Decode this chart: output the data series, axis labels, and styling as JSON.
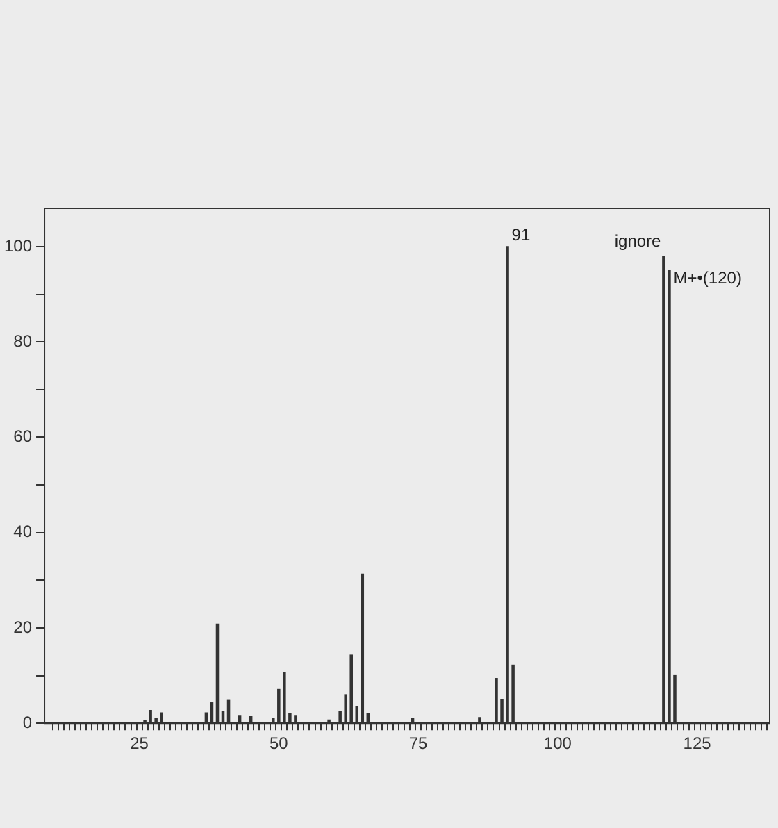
{
  "chart_data": {
    "type": "bar",
    "x": [
      26,
      27,
      28,
      29,
      37,
      38,
      39,
      40,
      41,
      43,
      45,
      49,
      50,
      51,
      52,
      53,
      59,
      61,
      62,
      63,
      64,
      65,
      66,
      74,
      86,
      89,
      90,
      91,
      92,
      119,
      120,
      121
    ],
    "values": [
      0.5,
      2.7,
      1,
      2.2,
      2.2,
      4.3,
      20.8,
      2.5,
      4.8,
      1.5,
      1.4,
      1,
      7.1,
      10.7,
      2,
      1.5,
      0.7,
      2.5,
      6,
      14.3,
      3.5,
      31.3,
      2,
      1,
      1.2,
      9.4,
      5,
      100,
      12.2,
      98,
      95,
      10
    ],
    "color": "#333333",
    "xlim": [
      8,
      138
    ],
    "xticks": [
      {
        "value": 10,
        "label": null
      },
      {
        "value": 11,
        "label": null
      },
      {
        "value": 12,
        "label": null
      },
      {
        "value": 13,
        "label": null
      },
      {
        "value": 14,
        "label": null
      },
      {
        "value": 15,
        "label": null
      },
      {
        "value": 16,
        "label": null
      },
      {
        "value": 17,
        "label": null
      },
      {
        "value": 18,
        "label": null
      },
      {
        "value": 19,
        "label": null
      },
      {
        "value": 20,
        "label": null
      },
      {
        "value": 21,
        "label": null
      },
      {
        "value": 22,
        "label": null
      },
      {
        "value": 23,
        "label": null
      },
      {
        "value": 24,
        "label": null
      },
      25,
      {
        "value": 26,
        "label": null
      },
      {
        "value": 27,
        "label": null
      },
      {
        "value": 28,
        "label": null
      },
      {
        "value": 29,
        "label": null
      },
      {
        "value": 30,
        "label": null
      },
      {
        "value": 31,
        "label": null
      },
      {
        "value": 32,
        "label": null
      },
      {
        "value": 33,
        "label": null
      },
      {
        "value": 34,
        "label": null
      },
      {
        "value": 35,
        "label": null
      },
      {
        "value": 36,
        "label": null
      },
      {
        "value": 37,
        "label": null
      },
      {
        "value": 38,
        "label": null
      },
      {
        "value": 39,
        "label": null
      },
      {
        "value": 40,
        "label": null
      },
      {
        "value": 41,
        "label": null
      },
      {
        "value": 42,
        "label": null
      },
      {
        "value": 43,
        "label": null
      },
      {
        "value": 44,
        "label": null
      },
      {
        "value": 45,
        "label": null
      },
      {
        "value": 46,
        "label": null
      },
      {
        "value": 47,
        "label": null
      },
      {
        "value": 48,
        "label": null
      },
      {
        "value": 49,
        "label": null
      },
      50,
      {
        "value": 51,
        "label": null
      },
      {
        "value": 52,
        "label": null
      },
      {
        "value": 53,
        "label": null
      },
      {
        "value": 54,
        "label": null
      },
      {
        "value": 55,
        "label": null
      },
      {
        "value": 56,
        "label": null
      },
      {
        "value": 57,
        "label": null
      },
      {
        "value": 58,
        "label": null
      },
      {
        "value": 59,
        "label": null
      },
      {
        "value": 60,
        "label": null
      },
      {
        "value": 61,
        "label": null
      },
      {
        "value": 62,
        "label": null
      },
      {
        "value": 63,
        "label": null
      },
      {
        "value": 64,
        "label": null
      },
      {
        "value": 65,
        "label": null
      },
      {
        "value": 66,
        "label": null
      },
      {
        "value": 67,
        "label": null
      },
      {
        "value": 68,
        "label": null
      },
      {
        "value": 69,
        "label": null
      },
      {
        "value": 70,
        "label": null
      },
      {
        "value": 71,
        "label": null
      },
      {
        "value": 72,
        "label": null
      },
      {
        "value": 73,
        "label": null
      },
      {
        "value": 74,
        "label": null
      },
      75,
      {
        "value": 76,
        "label": null
      },
      {
        "value": 77,
        "label": null
      },
      {
        "value": 78,
        "label": null
      },
      {
        "value": 79,
        "label": null
      },
      {
        "value": 80,
        "label": null
      },
      {
        "value": 81,
        "label": null
      },
      {
        "value": 82,
        "label": null
      },
      {
        "value": 83,
        "label": null
      },
      {
        "value": 84,
        "label": null
      },
      {
        "value": 85,
        "label": null
      },
      {
        "value": 86,
        "label": null
      },
      {
        "value": 87,
        "label": null
      },
      {
        "value": 88,
        "label": null
      },
      {
        "value": 89,
        "label": null
      },
      {
        "value": 90,
        "label": null
      },
      {
        "value": 91,
        "label": null
      },
      {
        "value": 92,
        "label": null
      },
      {
        "value": 93,
        "label": null
      },
      {
        "value": 94,
        "label": null
      },
      {
        "value": 95,
        "label": null
      },
      {
        "value": 96,
        "label": null
      },
      {
        "value": 97,
        "label": null
      },
      {
        "value": 98,
        "label": null
      },
      {
        "value": 99,
        "label": null
      },
      100,
      {
        "value": 101,
        "label": null
      },
      {
        "value": 102,
        "label": null
      },
      {
        "value": 103,
        "label": null
      },
      {
        "value": 104,
        "label": null
      },
      {
        "value": 105,
        "label": null
      },
      {
        "value": 106,
        "label": null
      },
      {
        "value": 107,
        "label": null
      },
      {
        "value": 108,
        "label": null
      },
      {
        "value": 109,
        "label": null
      },
      {
        "value": 110,
        "label": null
      },
      {
        "value": 111,
        "label": null
      },
      {
        "value": 112,
        "label": null
      },
      {
        "value": 113,
        "label": null
      },
      {
        "value": 114,
        "label": null
      },
      {
        "value": 115,
        "label": null
      },
      {
        "value": 116,
        "label": null
      },
      {
        "value": 117,
        "label": null
      },
      {
        "value": 118,
        "label": null
      },
      {
        "value": 119,
        "label": null
      },
      {
        "value": 120,
        "label": null
      },
      {
        "value": 121,
        "label": null
      },
      {
        "value": 122,
        "label": null
      },
      {
        "value": 123,
        "label": null
      },
      {
        "value": 124,
        "label": null
      },
      125,
      {
        "value": 126,
        "label": null
      },
      {
        "value": 127,
        "label": null
      },
      {
        "value": 128,
        "label": null
      },
      {
        "value": 129,
        "label": null
      },
      {
        "value": 130,
        "label": null
      },
      {
        "value": 131,
        "label": null
      },
      {
        "value": 132,
        "label": null
      },
      {
        "value": 133,
        "label": null
      },
      {
        "value": 134,
        "label": null
      },
      {
        "value": 135,
        "label": null
      },
      {
        "value": 136,
        "label": null
      },
      {
        "value": 137,
        "label": null
      }
    ],
    "ylim": [
      0,
      108
    ],
    "yticks": [
      0,
      {
        "value": 10,
        "label": null
      },
      20,
      {
        "value": 30,
        "label": null
      },
      40,
      {
        "value": 50,
        "label": null
      },
      60,
      {
        "value": 70,
        "label": null
      },
      80,
      {
        "value": 90,
        "label": null
      },
      100
    ],
    "grid": false,
    "legend": false,
    "annotations": [
      {
        "text": "91",
        "x": 91,
        "y": 100
      },
      {
        "text": "ignore",
        "x": 119,
        "y": 98
      },
      {
        "text": "M+•(120)",
        "x": 120,
        "y": 95
      }
    ]
  }
}
